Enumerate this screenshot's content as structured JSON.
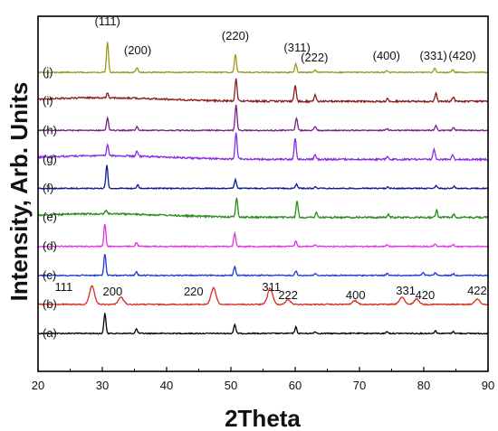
{
  "chart_data": {
    "type": "line",
    "xlabel": "2Theta",
    "ylabel": "Intensity, Arb. Units",
    "xlim": [
      20,
      90
    ],
    "x_ticks": [
      "20",
      "30",
      "40",
      "50",
      "60",
      "70",
      "80",
      "90"
    ],
    "grid": false,
    "legend": "none",
    "series": [
      {
        "name": "(a)",
        "color": "#000000",
        "baseline": 0,
        "peaks": [
          [
            30.4,
            22
          ],
          [
            35.3,
            5
          ],
          [
            50.6,
            10
          ],
          [
            60.1,
            7
          ],
          [
            63.1,
            2
          ],
          [
            74.3,
            2
          ],
          [
            81.8,
            3
          ],
          [
            84.6,
            2
          ]
        ]
      },
      {
        "name": "(b)",
        "color": "#d62d1b",
        "baseline": 1,
        "peaks": [
          [
            28.4,
            20
          ],
          [
            32.9,
            8
          ],
          [
            47.3,
            18
          ],
          [
            56.1,
            18
          ],
          [
            58.9,
            5
          ],
          [
            69.3,
            4
          ],
          [
            76.6,
            8
          ],
          [
            78.9,
            6
          ],
          [
            88.3,
            6
          ]
        ]
      },
      {
        "name": "(c)",
        "color": "#1f36d9",
        "baseline": 2,
        "peaks": [
          [
            30.4,
            24
          ],
          [
            35.3,
            4
          ],
          [
            50.6,
            10
          ],
          [
            60.1,
            5
          ],
          [
            63.1,
            2
          ],
          [
            74.3,
            2
          ],
          [
            79.9,
            3
          ],
          [
            81.8,
            3
          ],
          [
            84.6,
            2
          ]
        ]
      },
      {
        "name": "(d)",
        "color": "#e62ee6",
        "baseline": 3,
        "peaks": [
          [
            30.4,
            25
          ],
          [
            35.3,
            4
          ],
          [
            50.6,
            15
          ],
          [
            60.1,
            6
          ],
          [
            63.1,
            2
          ],
          [
            74.3,
            2
          ],
          [
            81.8,
            3
          ],
          [
            84.6,
            2
          ]
        ]
      },
      {
        "name": "(e)",
        "color": "#2a8a1e",
        "baseline": 4,
        "peaks": [
          [
            30.6,
            4
          ],
          [
            50.9,
            22
          ],
          [
            60.3,
            18
          ],
          [
            63.3,
            5
          ],
          [
            74.5,
            3
          ],
          [
            82.0,
            8
          ],
          [
            84.7,
            4
          ]
        ]
      },
      {
        "name": "(f)",
        "color": "#0c1a8c",
        "baseline": 5,
        "peaks": [
          [
            30.7,
            26
          ],
          [
            35.5,
            4
          ],
          [
            50.7,
            10
          ],
          [
            60.2,
            5
          ],
          [
            63.2,
            2
          ],
          [
            74.4,
            2
          ],
          [
            81.9,
            3
          ],
          [
            84.7,
            2
          ]
        ]
      },
      {
        "name": "(g)",
        "color": "#8a2be2",
        "baseline": 6,
        "peaks": [
          [
            30.8,
            12
          ],
          [
            35.4,
            6
          ],
          [
            50.8,
            30
          ],
          [
            60.0,
            24
          ],
          [
            63.1,
            5
          ],
          [
            74.3,
            3
          ],
          [
            81.6,
            11
          ],
          [
            84.5,
            5
          ]
        ]
      },
      {
        "name": "(h)",
        "color": "#7b1e8c",
        "baseline": 7,
        "peaks": [
          [
            30.8,
            14
          ],
          [
            35.4,
            4
          ],
          [
            50.8,
            28
          ],
          [
            60.2,
            14
          ],
          [
            63.1,
            4
          ],
          [
            74.3,
            2
          ],
          [
            81.9,
            5
          ],
          [
            84.6,
            3
          ]
        ]
      },
      {
        "name": "(i)",
        "color": "#8b1a1a",
        "baseline": 8,
        "peaks": [
          [
            30.8,
            5
          ],
          [
            50.8,
            24
          ],
          [
            60.0,
            18
          ],
          [
            63.1,
            7
          ],
          [
            74.4,
            3
          ],
          [
            81.9,
            9
          ],
          [
            84.6,
            5
          ]
        ]
      },
      {
        "name": "(j)",
        "color": "#9a9a1a",
        "baseline": 9,
        "peaks": [
          [
            30.8,
            34
          ],
          [
            35.4,
            5
          ],
          [
            50.7,
            20
          ],
          [
            60.1,
            10
          ],
          [
            63.1,
            3
          ],
          [
            74.3,
            2
          ],
          [
            81.7,
            5
          ],
          [
            84.5,
            3
          ]
        ]
      }
    ],
    "annotations_top": [
      "(111)",
      "(200)",
      "(220)",
      "(311)",
      "(222)",
      "(400)",
      "(331)",
      "(420)"
    ],
    "annotations_b": [
      "111",
      "200",
      "220",
      "311",
      "222",
      "400",
      "331",
      "420",
      "422"
    ]
  }
}
